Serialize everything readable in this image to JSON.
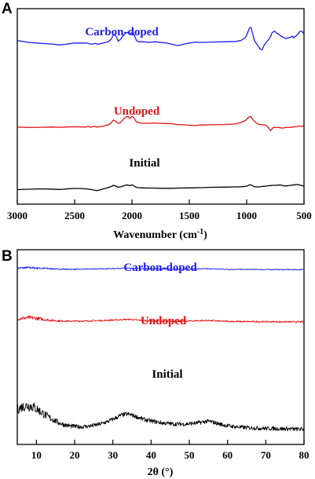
{
  "chart_data": [
    {
      "panel": "A",
      "type": "line",
      "xlabel_main": "Wavenumber (cm",
      "xlabel_sup": "-1",
      "xlabel_tail": ")",
      "xlim": [
        3000,
        500
      ],
      "ylim": [
        0,
        100
      ],
      "xticks": [
        "3000",
        "2500",
        "2000",
        "1500",
        "1000",
        "500"
      ],
      "yticks": false,
      "legend": "inline labels",
      "series": [
        {
          "name": "Carbon-doped",
          "color": "#1a1aff",
          "x": [
            3000,
            2900,
            2800,
            2700,
            2640,
            2580,
            2500,
            2400,
            2350,
            2320,
            2300,
            2250,
            2210,
            2180,
            2160,
            2140,
            2120,
            2100,
            2080,
            2060,
            2040,
            2030,
            2020,
            2010,
            2000,
            1990,
            1980,
            1970,
            1960,
            1950,
            1930,
            1900,
            1850,
            1800,
            1750,
            1700,
            1650,
            1620,
            1600,
            1560,
            1500,
            1450,
            1400,
            1300,
            1200,
            1100,
            1050,
            1010,
            990,
            980,
            970,
            960,
            950,
            930,
            910,
            900,
            885,
            870,
            860,
            850,
            830,
            810,
            790,
            780,
            760,
            750,
            740,
            720,
            700,
            680,
            660,
            640,
            620,
            600,
            590,
            580,
            570,
            560,
            550,
            540,
            520,
            510,
            500
          ],
          "y": [
            73,
            70,
            68.5,
            67.5,
            66,
            67,
            69,
            69,
            67,
            68.5,
            67,
            69,
            71,
            75,
            83,
            80,
            72,
            75,
            80,
            84,
            86,
            85,
            83,
            84,
            86,
            85,
            82,
            77,
            73,
            71.5,
            71,
            71,
            70,
            71,
            70,
            69,
            67,
            65.5,
            65,
            66.5,
            69,
            70.5,
            70,
            70.5,
            71,
            71.5,
            73,
            78,
            86,
            91,
            94,
            93,
            85,
            72,
            67,
            64,
            60,
            58,
            60,
            65,
            70,
            74,
            80,
            85,
            88,
            87,
            85,
            83,
            80,
            78,
            76,
            77,
            78,
            80,
            77,
            79,
            80,
            82,
            84,
            87,
            88,
            86,
            83
          ]
        },
        {
          "name": "Undoped",
          "color": "#e81010",
          "x": [
            3000,
            2900,
            2800,
            2700,
            2640,
            2580,
            2500,
            2400,
            2380,
            2360,
            2340,
            2300,
            2250,
            2200,
            2180,
            2160,
            2140,
            2120,
            2100,
            2080,
            2060,
            2040,
            2030,
            2020,
            2010,
            2000,
            1990,
            1980,
            1970,
            1960,
            1930,
            1900,
            1850,
            1800,
            1750,
            1700,
            1650,
            1600,
            1550,
            1500,
            1450,
            1400,
            1300,
            1200,
            1100,
            1050,
            1010,
            990,
            980,
            970,
            960,
            950,
            930,
            910,
            890,
            870,
            860,
            850,
            830,
            810,
            800,
            790,
            780,
            770,
            750,
            720,
            700,
            680,
            660,
            640,
            620,
            600,
            580,
            560,
            540,
            520,
            500
          ],
          "y": [
            41,
            40,
            40.5,
            41,
            40.5,
            41,
            41.5,
            41,
            42.5,
            40.5,
            42.5,
            41,
            43,
            46,
            50,
            55,
            52,
            48,
            50,
            55,
            60,
            62,
            61,
            58,
            60,
            62,
            61,
            58,
            54,
            51,
            49,
            48.5,
            48.5,
            49,
            48.5,
            48,
            47.5,
            46,
            45.5,
            44.5,
            44,
            45,
            45.5,
            46,
            47,
            50,
            54,
            59,
            61,
            62,
            61,
            57,
            52,
            48,
            46,
            46,
            45,
            45.5,
            44,
            40,
            36,
            34,
            37,
            40,
            40.5,
            40,
            39,
            39,
            40,
            40.5,
            40,
            41,
            41.5,
            42,
            43,
            42,
            44
          ]
        },
        {
          "name": "Initial",
          "color": "#000000",
          "x": [
            3000,
            2900,
            2800,
            2700,
            2640,
            2600,
            2550,
            2500,
            2450,
            2400,
            2350,
            2310,
            2280,
            2250,
            2220,
            2200,
            2180,
            2160,
            2140,
            2120,
            2100,
            2080,
            2060,
            2040,
            2030,
            2020,
            2010,
            2000,
            1990,
            1980,
            1970,
            1960,
            1950,
            1900,
            1850,
            1800,
            1750,
            1700,
            1650,
            1600,
            1500,
            1400,
            1300,
            1200,
            1100,
            1050,
            1010,
            990,
            980,
            970,
            960,
            950,
            930,
            910,
            890,
            870,
            850,
            830,
            810,
            790,
            770,
            750,
            730,
            710,
            700,
            690,
            680,
            660,
            640,
            620,
            600,
            580,
            560,
            540,
            520,
            500
          ],
          "y": [
            7,
            8,
            9,
            8.5,
            7.5,
            8,
            9.5,
            10,
            10,
            9,
            7,
            4.5,
            6,
            9,
            11,
            13,
            15,
            18,
            16,
            13,
            14,
            16,
            18,
            19,
            18,
            17,
            18,
            19,
            18,
            16,
            14,
            13,
            12,
            11.5,
            11,
            11,
            10.5,
            10.5,
            10.5,
            11,
            11.5,
            12,
            13,
            13.5,
            14,
            14.5,
            15.5,
            17,
            18.5,
            19.5,
            19,
            17,
            14.5,
            14,
            14,
            15,
            15.5,
            16,
            17,
            17.5,
            18,
            18,
            18.5,
            19,
            18.5,
            18,
            17,
            16.5,
            17,
            18,
            18.5,
            19.5,
            20,
            19,
            17.5,
            16
          ]
        }
      ]
    },
    {
      "panel": "B",
      "type": "line",
      "xlabel": "2θ (°)",
      "xlim": [
        5,
        80
      ],
      "ylim": [
        0,
        100
      ],
      "xticks": [
        "10",
        "20",
        "30",
        "40",
        "50",
        "60",
        "70",
        "80"
      ],
      "yticks": false,
      "legend": "inline labels",
      "series": [
        {
          "name": "Carbon-doped",
          "color": "#1a1aff",
          "x": [
            5,
            6,
            7,
            8,
            9,
            10,
            11,
            12,
            13,
            14,
            15,
            16,
            17,
            18,
            19,
            20,
            21,
            22,
            23,
            24,
            25,
            26,
            27,
            28,
            29,
            30,
            31,
            32,
            33,
            34,
            35,
            36,
            37,
            38,
            39,
            40,
            41,
            42,
            43,
            44,
            45,
            46,
            47,
            48,
            49,
            50,
            51,
            52,
            53,
            54,
            55,
            56,
            57,
            58,
            59,
            60,
            62,
            64,
            66,
            68,
            70,
            72,
            74,
            76,
            78,
            80
          ],
          "y": [
            92,
            93,
            94.5,
            95,
            94,
            93,
            91,
            90,
            89,
            88,
            86.5,
            85,
            84.5,
            84,
            83.5,
            83.5,
            84,
            84.5,
            85,
            85.5,
            86,
            86.5,
            87,
            87.5,
            88,
            88.5,
            89.5,
            90.5,
            91,
            91,
            90.5,
            89.5,
            88.5,
            87.5,
            86.5,
            86,
            85.5,
            85,
            84.5,
            84.5,
            84.5,
            84.5,
            84.5,
            84.5,
            85,
            85,
            85.5,
            86,
            86.5,
            87,
            87,
            86.5,
            85.5,
            84.5,
            84,
            83.5,
            83,
            82.5,
            82.5,
            82,
            82,
            82,
            81.5,
            81.5,
            81.5,
            81.5
          ]
        },
        {
          "name": "Undoped",
          "color": "#e81010",
          "x": [
            5,
            6,
            7,
            8,
            9,
            10,
            11,
            12,
            13,
            14,
            15,
            16,
            17,
            18,
            19,
            20,
            21,
            22,
            23,
            24,
            25,
            26,
            27,
            28,
            29,
            30,
            31,
            32,
            33,
            34,
            35,
            36,
            37,
            38,
            39,
            40,
            41,
            42,
            43,
            44,
            45,
            46,
            47,
            48,
            49,
            50,
            51,
            52,
            53,
            54,
            55,
            56,
            57,
            58,
            59,
            60,
            62,
            64,
            66,
            68,
            70,
            72,
            74,
            76,
            78,
            80
          ],
          "y": [
            64,
            65.5,
            67,
            68,
            67,
            65.5,
            63,
            60.5,
            58.5,
            57,
            55.5,
            54.5,
            54,
            53.5,
            53.5,
            53.5,
            53.5,
            54,
            54,
            54.5,
            55,
            55.5,
            56,
            56.5,
            57.5,
            58,
            58.5,
            59.5,
            60.5,
            61,
            60,
            58.5,
            57,
            56,
            55,
            54.5,
            54,
            53.5,
            53.5,
            53,
            53,
            53,
            53,
            53.5,
            53.5,
            54,
            54.5,
            55,
            55.5,
            56,
            56,
            55.5,
            54.5,
            53.5,
            53,
            52.5,
            52,
            51.5,
            51.5,
            51,
            51,
            51,
            50.5,
            50.5,
            50.5,
            50.5
          ]
        },
        {
          "name": "Initial",
          "color": "#000000",
          "x": [
            5,
            6,
            7,
            8,
            9,
            10,
            11,
            12,
            13,
            14,
            15,
            16,
            17,
            18,
            19,
            20,
            21,
            22,
            23,
            24,
            25,
            26,
            27,
            28,
            29,
            30,
            31,
            32,
            33,
            34,
            35,
            36,
            37,
            38,
            39,
            40,
            41,
            42,
            43,
            44,
            45,
            46,
            47,
            48,
            49,
            50,
            51,
            52,
            53,
            54,
            55,
            56,
            57,
            58,
            59,
            60,
            62,
            64,
            66,
            68,
            70,
            72,
            74,
            76,
            78,
            80
          ],
          "y": [
            33,
            36,
            38,
            38.5,
            37,
            34,
            30,
            26,
            22,
            19,
            16,
            13,
            11,
            9.5,
            8.5,
            8,
            7.5,
            7.5,
            8,
            8.5,
            9.5,
            10.5,
            12,
            14,
            16,
            18.5,
            21,
            24,
            25.5,
            26,
            24.5,
            22.5,
            20.5,
            18.5,
            17,
            16,
            15,
            14,
            13,
            12.5,
            12,
            11.5,
            11.5,
            11.5,
            11.5,
            12,
            12.5,
            13,
            14,
            15,
            15.5,
            14.5,
            13,
            11.5,
            10,
            9,
            7.5,
            6.5,
            6,
            5.5,
            5,
            5,
            4.5,
            4.5,
            4,
            4
          ]
        }
      ]
    }
  ]
}
